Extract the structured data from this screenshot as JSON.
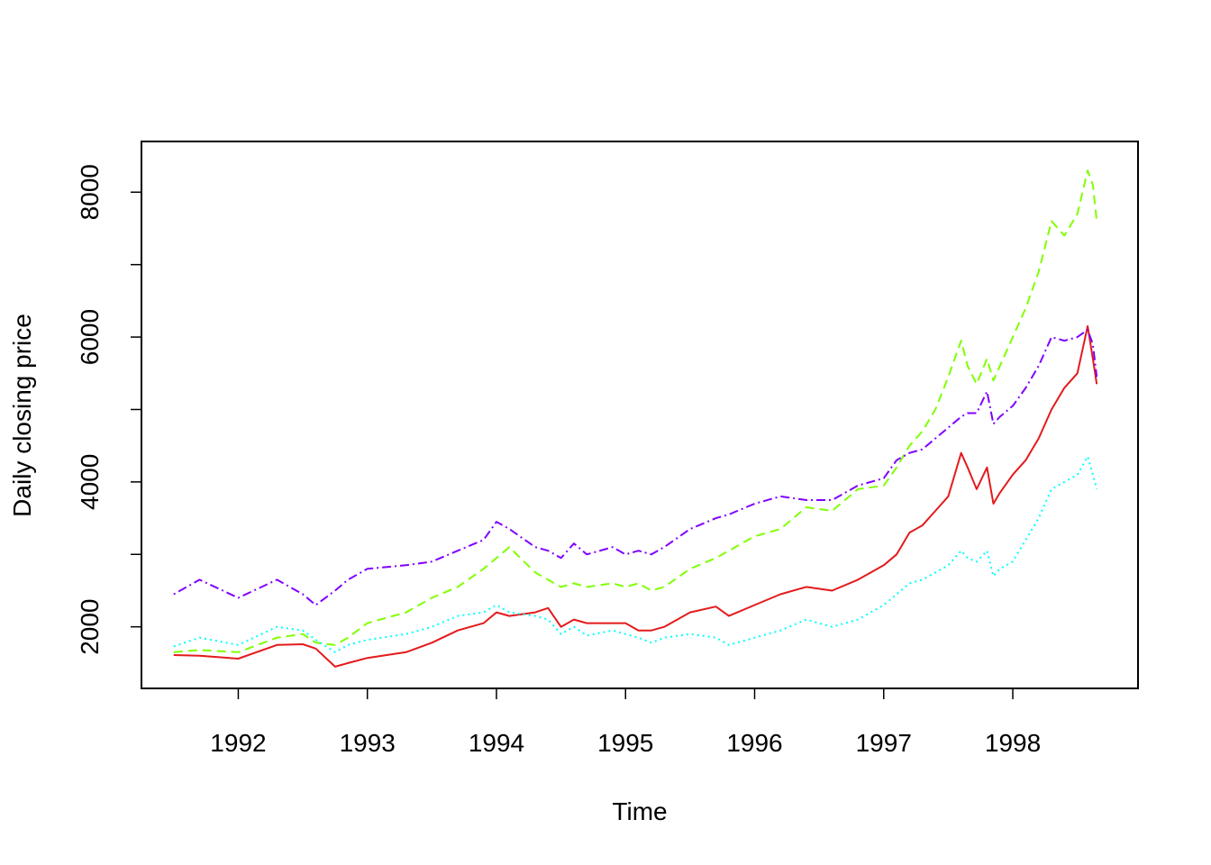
{
  "chart_data": {
    "type": "line",
    "title": "",
    "xlabel": "Time",
    "ylabel": "Daily closing price",
    "xlim": [
      1991.25,
      1998.97
    ],
    "ylim": [
      1150,
      8700
    ],
    "x_ticks": [
      1992,
      1993,
      1994,
      1995,
      1996,
      1997,
      1998
    ],
    "x_tick_labels": [
      "1992",
      "1993",
      "1994",
      "1995",
      "1996",
      "1997",
      "1998"
    ],
    "y_ticks": [
      2000,
      3000,
      4000,
      5000,
      6000,
      7000,
      8000
    ],
    "y_tick_labels": [
      "2000",
      "",
      "4000",
      "",
      "6000",
      "",
      "8000"
    ],
    "grid": false,
    "legend": "none",
    "series": [
      {
        "color": "#E41A1C",
        "line_style": "solid",
        "x": [
          1991.5,
          1991.7,
          1992.0,
          1992.3,
          1992.5,
          1992.6,
          1992.75,
          1992.85,
          1993.0,
          1993.3,
          1993.5,
          1993.7,
          1993.9,
          1994.0,
          1994.1,
          1994.3,
          1994.4,
          1994.5,
          1994.6,
          1994.7,
          1994.9,
          1995.0,
          1995.1,
          1995.2,
          1995.3,
          1995.5,
          1995.7,
          1995.8,
          1996.0,
          1996.2,
          1996.4,
          1996.6,
          1996.8,
          1997.0,
          1997.1,
          1997.2,
          1997.3,
          1997.4,
          1997.5,
          1997.6,
          1997.65,
          1997.72,
          1997.8,
          1997.85,
          1997.9,
          1998.0,
          1998.1,
          1998.2,
          1998.3,
          1998.4,
          1998.5,
          1998.58,
          1998.62,
          1998.65
        ],
        "y": [
          1610,
          1600,
          1560,
          1750,
          1760,
          1700,
          1450,
          1500,
          1570,
          1650,
          1780,
          1950,
          2050,
          2200,
          2150,
          2200,
          2260,
          2000,
          2100,
          2050,
          2050,
          2050,
          1950,
          1950,
          2000,
          2200,
          2280,
          2150,
          2300,
          2450,
          2550,
          2500,
          2650,
          2850,
          3000,
          3300,
          3400,
          3600,
          3800,
          4400,
          4200,
          3900,
          4200,
          3700,
          3850,
          4100,
          4300,
          4600,
          5000,
          5300,
          5500,
          6150,
          5700,
          5350
        ]
      },
      {
        "color": "#80FF00",
        "line_style": "dashed",
        "x": [
          1991.5,
          1991.7,
          1992.0,
          1992.3,
          1992.5,
          1992.6,
          1992.75,
          1992.85,
          1993.0,
          1993.3,
          1993.5,
          1993.7,
          1993.9,
          1994.0,
          1994.1,
          1994.3,
          1994.4,
          1994.5,
          1994.6,
          1994.7,
          1994.9,
          1995.0,
          1995.1,
          1995.2,
          1995.3,
          1995.5,
          1995.7,
          1995.8,
          1996.0,
          1996.2,
          1996.4,
          1996.6,
          1996.8,
          1997.0,
          1997.1,
          1997.2,
          1997.3,
          1997.4,
          1997.5,
          1997.6,
          1997.65,
          1997.72,
          1997.8,
          1997.85,
          1997.9,
          1998.0,
          1998.1,
          1998.2,
          1998.3,
          1998.4,
          1998.5,
          1998.58,
          1998.62,
          1998.65
        ],
        "y": [
          1650,
          1680,
          1650,
          1850,
          1900,
          1780,
          1750,
          1850,
          2050,
          2200,
          2400,
          2550,
          2800,
          2950,
          3100,
          2750,
          2650,
          2550,
          2600,
          2550,
          2600,
          2550,
          2600,
          2500,
          2550,
          2800,
          2950,
          3050,
          3250,
          3350,
          3650,
          3600,
          3900,
          3950,
          4200,
          4500,
          4700,
          5000,
          5450,
          5950,
          5600,
          5350,
          5700,
          5400,
          5600,
          6000,
          6400,
          6900,
          7600,
          7400,
          7700,
          8300,
          8100,
          7600
        ]
      },
      {
        "color": "#00FFFF",
        "line_style": "dotted",
        "x": [
          1991.5,
          1991.7,
          1992.0,
          1992.3,
          1992.5,
          1992.6,
          1992.75,
          1992.85,
          1993.0,
          1993.3,
          1993.5,
          1993.7,
          1993.9,
          1994.0,
          1994.1,
          1994.3,
          1994.4,
          1994.5,
          1994.6,
          1994.7,
          1994.9,
          1995.0,
          1995.1,
          1995.2,
          1995.3,
          1995.5,
          1995.7,
          1995.8,
          1996.0,
          1996.2,
          1996.4,
          1996.6,
          1996.8,
          1997.0,
          1997.1,
          1997.2,
          1997.3,
          1997.4,
          1997.5,
          1997.6,
          1997.65,
          1997.72,
          1997.8,
          1997.85,
          1997.9,
          1998.0,
          1998.1,
          1998.2,
          1998.3,
          1998.4,
          1998.5,
          1998.58,
          1998.62,
          1998.65
        ],
        "y": [
          1730,
          1850,
          1750,
          2000,
          1950,
          1820,
          1650,
          1750,
          1820,
          1900,
          2000,
          2150,
          2200,
          2300,
          2200,
          2150,
          2100,
          1900,
          2000,
          1880,
          1950,
          1900,
          1850,
          1780,
          1850,
          1900,
          1850,
          1750,
          1850,
          1950,
          2100,
          2000,
          2100,
          2300,
          2450,
          2600,
          2650,
          2750,
          2850,
          3050,
          2950,
          2900,
          3050,
          2700,
          2800,
          2900,
          3200,
          3500,
          3900,
          4000,
          4100,
          4350,
          4100,
          3900
        ]
      },
      {
        "color": "#8000FF",
        "line_style": "dotdash",
        "x": [
          1991.5,
          1991.7,
          1992.0,
          1992.3,
          1992.5,
          1992.6,
          1992.75,
          1992.85,
          1993.0,
          1993.3,
          1993.5,
          1993.7,
          1993.9,
          1994.0,
          1994.1,
          1994.3,
          1994.4,
          1994.5,
          1994.6,
          1994.7,
          1994.9,
          1995.0,
          1995.1,
          1995.2,
          1995.3,
          1995.5,
          1995.7,
          1995.8,
          1996.0,
          1996.2,
          1996.4,
          1996.6,
          1996.8,
          1997.0,
          1997.1,
          1997.2,
          1997.3,
          1997.4,
          1997.5,
          1997.6,
          1997.65,
          1997.72,
          1997.8,
          1997.85,
          1997.9,
          1998.0,
          1998.1,
          1998.2,
          1998.3,
          1998.4,
          1998.5,
          1998.58,
          1998.62,
          1998.65
        ],
        "y": [
          2450,
          2650,
          2400,
          2650,
          2450,
          2300,
          2500,
          2650,
          2800,
          2850,
          2900,
          3050,
          3200,
          3450,
          3350,
          3100,
          3050,
          2950,
          3150,
          3000,
          3100,
          3000,
          3050,
          3000,
          3100,
          3350,
          3500,
          3550,
          3700,
          3800,
          3750,
          3750,
          3950,
          4050,
          4300,
          4400,
          4450,
          4600,
          4750,
          4900,
          4950,
          4950,
          5250,
          4800,
          4900,
          5050,
          5300,
          5600,
          6000,
          5950,
          6000,
          6100,
          5900,
          5450
        ]
      }
    ]
  }
}
